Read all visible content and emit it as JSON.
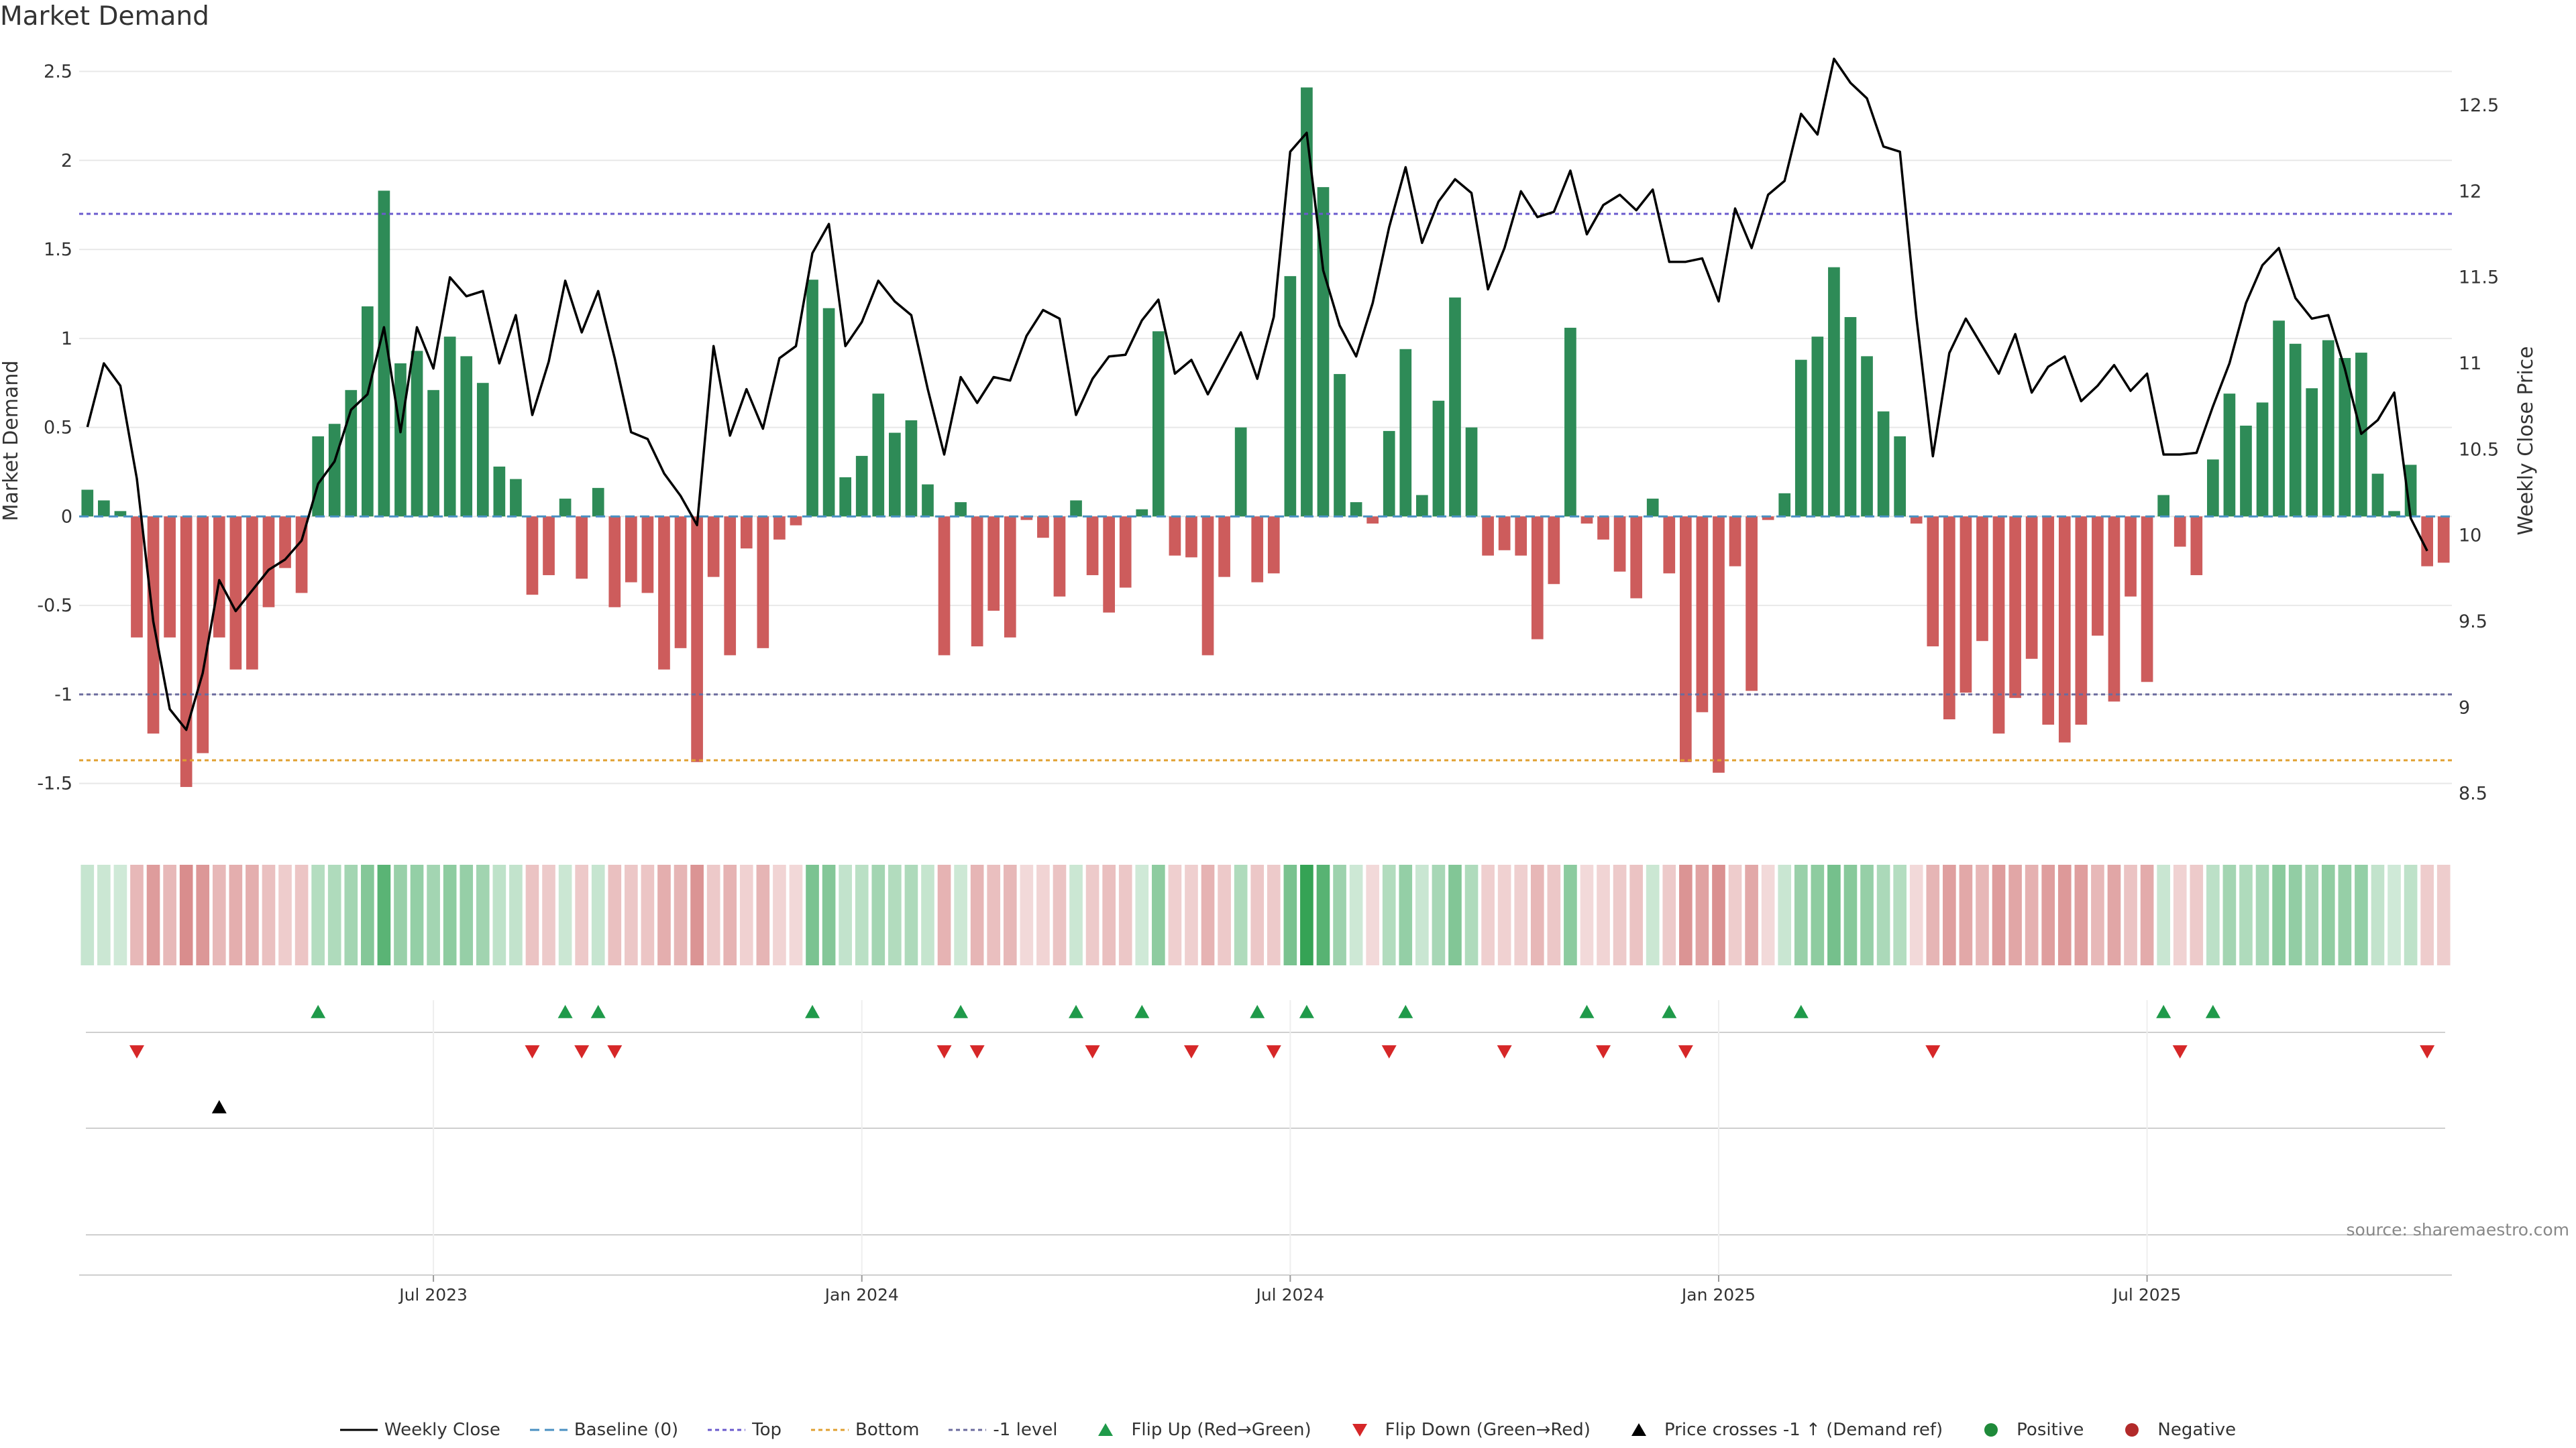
{
  "title": "Market Demand",
  "source": "source: sharemaestro.com",
  "colors": {
    "positive": "#2e8b57",
    "negative": "#cd5c5c",
    "line": "#000000",
    "top": "#6a5acd",
    "bottom": "#e0a030",
    "minus1": "#6b6b9e",
    "baseline": "#4a90c2",
    "flip_up": "#1f9a4a",
    "flip_down": "#d62728",
    "cross": "#000000",
    "grid": "#e8e8e8"
  },
  "chart_data": {
    "type": "bar",
    "title": "Market Demand",
    "ylabel": "Market Demand",
    "y2label": "Weekly Close Price",
    "ylim": [
      -1.75,
      2.6
    ],
    "y2lim": [
      8.3,
      12.8
    ],
    "yticks": [
      "2.5",
      "2",
      "1.5",
      "1",
      "0.5",
      "0",
      "-0.5",
      "-1",
      "-1.5"
    ],
    "y2ticks": [
      "12.5",
      "12",
      "11.5",
      "11",
      "10.5",
      "10",
      "9.5",
      "9",
      "8.5"
    ],
    "xticks": [
      {
        "label": "Jul 2023",
        "index": 21
      },
      {
        "label": "Jan 2024",
        "index": 47
      },
      {
        "label": "Jul 2024",
        "index": 73
      },
      {
        "label": "Jan 2025",
        "index": 99
      },
      {
        "label": "Jul 2025",
        "index": 125
      }
    ],
    "top_level": 1.7,
    "bottom_level": -1.37,
    "minus1_level": -1.0,
    "demand": [
      0.15,
      0.09,
      0.03,
      -0.68,
      -1.22,
      -0.68,
      -1.52,
      -1.33,
      -0.68,
      -0.86,
      -0.86,
      -0.51,
      -0.29,
      -0.43,
      0.45,
      0.52,
      0.71,
      1.18,
      1.83,
      0.86,
      0.93,
      0.71,
      1.01,
      0.9,
      0.75,
      0.28,
      0.21,
      -0.44,
      -0.33,
      0.1,
      -0.35,
      0.16,
      -0.51,
      -0.37,
      -0.43,
      -0.86,
      -0.74,
      -1.38,
      -0.34,
      -0.78,
      -0.18,
      -0.74,
      -0.13,
      -0.05,
      1.33,
      1.17,
      0.22,
      0.34,
      0.69,
      0.47,
      0.54,
      0.18,
      -0.78,
      0.08,
      -0.73,
      -0.53,
      -0.68,
      -0.02,
      -0.12,
      -0.45,
      0.09,
      -0.33,
      -0.54,
      -0.4,
      0.04,
      1.04,
      -0.22,
      -0.23,
      -0.78,
      -0.34,
      0.5,
      -0.37,
      -0.32,
      1.35,
      2.41,
      1.85,
      0.8,
      0.08,
      -0.04,
      0.48,
      0.94,
      0.12,
      0.65,
      1.23,
      0.5,
      -0.22,
      -0.19,
      -0.22,
      -0.69,
      -0.38,
      1.06,
      -0.04,
      -0.13,
      -0.31,
      -0.46,
      0.1,
      -0.32,
      -1.38,
      -1.1,
      -1.44,
      -0.28,
      -0.98,
      -0.02,
      0.13,
      0.88,
      1.01,
      1.4,
      1.12,
      0.9,
      0.59,
      0.45,
      -0.04,
      -0.73,
      -1.14,
      -0.99,
      -0.7,
      -1.22,
      -1.02,
      -0.8,
      -1.17,
      -1.27,
      -1.17,
      -0.67,
      -1.04,
      -0.45,
      -0.93,
      0.12,
      -0.17,
      -0.33,
      0.32,
      0.69,
      0.51,
      0.64,
      1.1,
      0.97,
      0.72,
      0.99,
      0.89,
      0.92,
      0.24,
      0.03,
      0.29,
      -0.28,
      -0.26
    ],
    "price": [
      10.63,
      11.0,
      10.87,
      10.33,
      9.5,
      8.99,
      8.87,
      9.2,
      9.74,
      9.56,
      9.68,
      9.8,
      9.86,
      9.97,
      10.3,
      10.43,
      10.73,
      10.82,
      11.21,
      10.6,
      11.21,
      10.97,
      11.5,
      11.39,
      11.42,
      11.0,
      11.28,
      10.7,
      11.01,
      11.48,
      11.18,
      11.42,
      11.03,
      10.6,
      10.56,
      10.36,
      10.23,
      10.06,
      11.1,
      10.58,
      10.85,
      10.62,
      11.03,
      11.1,
      11.64,
      11.81,
      11.1,
      11.24,
      11.48,
      11.36,
      11.28,
      10.85,
      10.47,
      10.92,
      10.77,
      10.92,
      10.9,
      11.16,
      11.31,
      11.26,
      10.7,
      10.91,
      11.04,
      11.05,
      11.25,
      11.37,
      10.94,
      11.02,
      10.82,
      11.0,
      11.18,
      10.91,
      11.27,
      12.23,
      12.34,
      11.54,
      11.22,
      11.04,
      11.35,
      11.79,
      12.14,
      11.7,
      11.94,
      12.07,
      11.99,
      11.43,
      11.67,
      12.0,
      11.85,
      11.88,
      12.12,
      11.75,
      11.92,
      11.98,
      11.89,
      12.01,
      11.59,
      11.59,
      11.61,
      11.36,
      11.9,
      11.67,
      11.98,
      12.06,
      12.45,
      12.33,
      12.77,
      12.63,
      12.54,
      12.26,
      12.23,
      11.27,
      10.46,
      11.06,
      11.26,
      11.1,
      10.94,
      11.17,
      10.83,
      10.98,
      11.04,
      10.78,
      10.87,
      10.99,
      10.84,
      10.94,
      10.47,
      10.47,
      10.48,
      10.75,
      11.0,
      11.35,
      11.57,
      11.67,
      11.38,
      11.26,
      11.28,
      10.97,
      10.59,
      10.67,
      10.83,
      10.1,
      9.91
    ],
    "flip_up_idx": [
      14,
      29,
      31,
      44,
      53,
      60,
      64,
      71,
      74,
      80,
      91,
      96,
      104,
      126,
      129
    ],
    "flip_down_idx": [
      3,
      27,
      30,
      32,
      52,
      54,
      61,
      67,
      72,
      79,
      86,
      92,
      97,
      112,
      127,
      142
    ],
    "cross_idx": [
      8
    ]
  },
  "legend": [
    {
      "key": "line",
      "label": "Weekly Close"
    },
    {
      "key": "baseline",
      "label": "Baseline (0)"
    },
    {
      "key": "top",
      "label": "Top"
    },
    {
      "key": "bottom",
      "label": "Bottom"
    },
    {
      "key": "minus1",
      "label": "-1 level"
    },
    {
      "key": "flip_up",
      "label": "Flip Up (Red→Green)"
    },
    {
      "key": "flip_down",
      "label": "Flip Down (Green→Red)"
    },
    {
      "key": "cross",
      "label": "Price crosses -1 ↑ (Demand ref)"
    },
    {
      "key": "pos",
      "label": "Positive"
    },
    {
      "key": "neg",
      "label": "Negative"
    }
  ]
}
